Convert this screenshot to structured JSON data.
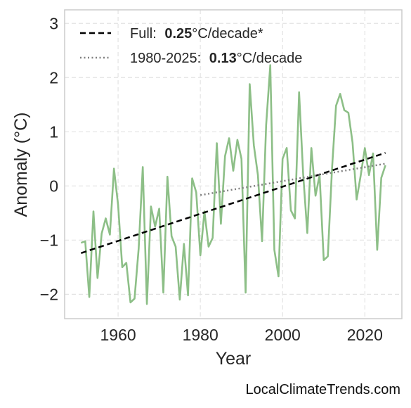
{
  "chart_data": {
    "type": "line",
    "xlabel": "Year",
    "ylabel": "Anomaly (°C)",
    "xlim": [
      1947,
      2029
    ],
    "ylim": [
      -2.45,
      3.25
    ],
    "xticks": [
      1960,
      1980,
      2000,
      2020
    ],
    "yticks": [
      -2,
      -1,
      0,
      1,
      2,
      3
    ],
    "ytick_labels": [
      "−2",
      "−1",
      "0",
      "1",
      "2",
      "3"
    ],
    "grid": true,
    "legend_position": "top-left",
    "series": [
      {
        "style": "solid",
        "color": "#8dbf87",
        "x": [
          1951,
          1952,
          1953,
          1954,
          1955,
          1956,
          1957,
          1958,
          1959,
          1960,
          1961,
          1962,
          1963,
          1964,
          1965,
          1966,
          1967,
          1968,
          1969,
          1970,
          1971,
          1972,
          1973,
          1974,
          1975,
          1976,
          1977,
          1978,
          1979,
          1980,
          1981,
          1982,
          1983,
          1984,
          1985,
          1986,
          1987,
          1988,
          1989,
          1990,
          1991,
          1992,
          1993,
          1994,
          1995,
          1996,
          1997,
          1998,
          1999,
          2000,
          2001,
          2002,
          2003,
          2004,
          2005,
          2006,
          2007,
          2008,
          2009,
          2010,
          2011,
          2012,
          2013,
          2014,
          2015,
          2016,
          2017,
          2018,
          2019,
          2020,
          2021,
          2022,
          2023,
          2024,
          2025
        ],
        "values": [
          -1.05,
          -1.02,
          -2.05,
          -0.47,
          -1.7,
          -0.88,
          -0.6,
          -0.9,
          0.32,
          -0.35,
          -1.5,
          -1.42,
          -2.15,
          -2.08,
          -1.15,
          0.35,
          -2.18,
          -0.38,
          -0.75,
          -0.42,
          -1.97,
          0.17,
          -0.93,
          -1.12,
          -2.1,
          -1.07,
          -2.02,
          0.14,
          -0.12,
          -1.28,
          -0.47,
          -1.12,
          -0.96,
          0.79,
          -0.7,
          0.55,
          0.88,
          0.28,
          0.85,
          0.5,
          -1.97,
          1.88,
          0.75,
          0.2,
          -1.02,
          1.12,
          2.23,
          -1.18,
          -1.67,
          0.5,
          0.7,
          -0.45,
          -0.6,
          1.73,
          0.22,
          -0.87,
          0.7,
          -0.18,
          0.2,
          -1.37,
          -1.3,
          0.3,
          1.48,
          1.7,
          1.4,
          1.35,
          0.8,
          -0.25,
          0.2,
          0.7,
          0.2,
          0.6,
          -1.18,
          0.15,
          0.38
        ]
      },
      {
        "name": "Full:",
        "rate": "0.25",
        "unit": "°C/decade*",
        "style": "dashed",
        "color": "#000000",
        "x": [
          1951,
          2025
        ],
        "values": [
          -1.24,
          0.61
        ]
      },
      {
        "name": "1980-2025:",
        "rate": "0.13",
        "unit": "°C/decade",
        "style": "dotted",
        "color": "#808080",
        "x": [
          1980,
          2025
        ],
        "values": [
          -0.17,
          0.41
        ]
      }
    ]
  },
  "credit": "LocalClimateTrends.com"
}
